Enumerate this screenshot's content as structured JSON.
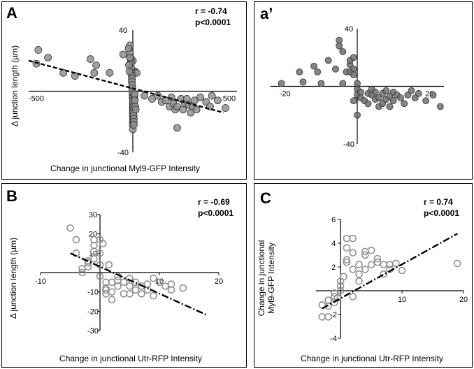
{
  "panels": {
    "A": {
      "label": "A",
      "xlabel": "Change in junctional Myl9-GFP Intensity",
      "ylabel": "Δ junction length (µm)",
      "stat_r": "r = -0.74",
      "stat_p": "p<0.0001"
    },
    "A2": {
      "label": "a’"
    },
    "B": {
      "label": "B",
      "xlabel": "Change in junctional Utr-RFP Intensity",
      "ylabel": "Δ junction length (µm)",
      "stat_r": "r = -0.69",
      "stat_p": "p<0.0001"
    },
    "C": {
      "label": "C",
      "xlabel": "Change in junctional Utr-RFP Intensity",
      "ylabel_line1": "Change in junctional",
      "ylabel_line2": "Myl9-GFP Intensity",
      "stat_r": "r = 0.74",
      "stat_p": "p<0.0001"
    }
  },
  "chart_data": [
    {
      "id": "A",
      "type": "scatter",
      "x_ticks": [
        -500,
        500
      ],
      "y_ticks": [
        40,
        -40
      ],
      "xlim": [
        -540,
        540
      ],
      "ylim": [
        -40,
        40
      ],
      "marker": "filled-circle",
      "marker_color": "#909090",
      "fit_line": {
        "style": "dashed",
        "x": [
          -540,
          470
        ],
        "y": [
          20,
          -14
        ]
      },
      "x": [
        -490,
        -500,
        -440,
        -360,
        -300,
        -220,
        -200,
        -190,
        -120,
        -50,
        0,
        10,
        20,
        -15,
        -15,
        -12,
        -10,
        -10,
        -8,
        -8,
        -5,
        -5,
        -5,
        -3,
        -3,
        -2,
        -2,
        -1,
        0,
        0,
        0,
        0,
        0,
        0,
        0,
        0,
        0,
        0,
        0,
        0,
        2,
        2,
        3,
        3,
        4,
        5,
        5,
        5,
        8,
        8,
        10,
        10,
        12,
        15,
        -20,
        -18,
        -15,
        -22,
        60,
        100,
        130,
        150,
        170,
        190,
        200,
        210,
        220,
        230,
        250,
        260,
        270,
        280,
        290,
        300,
        310,
        320,
        330,
        350,
        380,
        400,
        410,
        440,
        480,
        230
      ],
      "y": [
        27,
        18,
        22,
        12,
        10,
        21,
        12,
        17,
        12,
        24,
        20,
        13,
        12,
        30,
        25,
        22,
        20,
        18,
        15,
        12,
        10,
        8,
        6,
        4,
        2,
        0,
        -2,
        -4,
        -6,
        -8,
        -10,
        -12,
        -14,
        -16,
        -18,
        -20,
        -22,
        -25,
        -4,
        -6,
        -8,
        -10,
        -12,
        -14,
        -16,
        -18,
        -20,
        -22,
        -5,
        -3,
        -2,
        -6,
        -10,
        -12,
        17,
        13,
        22,
        28,
        -3,
        -5,
        -3,
        -7,
        -6,
        -10,
        -4,
        -8,
        -12,
        -10,
        -5,
        -12,
        -8,
        -5,
        -9,
        -14,
        -10,
        -6,
        -12,
        -4,
        -7,
        -10,
        -3,
        -6,
        -11,
        -24
      ]
    },
    {
      "id": "a'",
      "type": "scatter",
      "x_ticks": [
        -20,
        20
      ],
      "y_ticks": [
        40,
        -40
      ],
      "xlim": [
        -24,
        24
      ],
      "ylim": [
        -40,
        40
      ],
      "marker": "filled-circle",
      "marker_color": "#707070",
      "x": [
        -21,
        -12,
        -11,
        -10,
        -8,
        -6,
        -5,
        -5,
        -4,
        -4,
        -3,
        -2,
        -2,
        -2,
        -1,
        -1,
        -1,
        0,
        0,
        0,
        1,
        1,
        2,
        3,
        3,
        4,
        4,
        5,
        5,
        6,
        6,
        7,
        7,
        8,
        8,
        9,
        9,
        10,
        10,
        11,
        12,
        13,
        14,
        15,
        16,
        17,
        19,
        21,
        23,
        -15,
        -16,
        -1,
        0
      ],
      "y": [
        2,
        14,
        10,
        2,
        18,
        12,
        28,
        32,
        24,
        2,
        10,
        15,
        18,
        10,
        12,
        20,
        8,
        2,
        -2,
        -6,
        -4,
        -8,
        -10,
        -5,
        -12,
        -6,
        -2,
        -9,
        -4,
        -14,
        -8,
        -5,
        -12,
        -3,
        -9,
        -7,
        -14,
        -4,
        -10,
        -6,
        -8,
        -12,
        -6,
        -3,
        -8,
        -5,
        -10,
        -6,
        -14,
        3,
        10,
        -10,
        -20
      ]
    },
    {
      "id": "B",
      "type": "scatter",
      "x_ticks": [
        -10,
        10,
        20
      ],
      "y_ticks": [
        30,
        20,
        10,
        -10,
        -20,
        -30
      ],
      "xlim": [
        -10,
        20
      ],
      "ylim": [
        -30,
        30
      ],
      "marker": "open-circle",
      "marker_color": "#909090",
      "fit_line": {
        "style": "dash-dot",
        "x": [
          -5,
          18
        ],
        "y": [
          10,
          -22
        ]
      },
      "x": [
        -5,
        -4,
        -4,
        -3,
        -2,
        -2,
        -1,
        -1,
        -1,
        0,
        0,
        0,
        0.5,
        1,
        1,
        1.5,
        2,
        -3,
        -2,
        0,
        1,
        1,
        2,
        2,
        3,
        3,
        3,
        4,
        4,
        5,
        5,
        5,
        6,
        6,
        7,
        7,
        8,
        8,
        9,
        9,
        10,
        11,
        12,
        12,
        14,
        -1
      ],
      "y": [
        23,
        17,
        10,
        0,
        3,
        6,
        7,
        11,
        17,
        4,
        10,
        17,
        15,
        -5,
        -9,
        4,
        -14,
        2,
        5,
        -2,
        -8,
        -11,
        -5,
        -10,
        -4,
        -7,
        -2,
        -5,
        -11,
        -7,
        -11,
        -3,
        -9,
        -5,
        -7,
        -11,
        -6,
        -9,
        -3,
        -12,
        -5,
        -7,
        -9,
        -6,
        -8,
        14
      ]
    },
    {
      "id": "C",
      "type": "scatter",
      "x_ticks": [
        10,
        20
      ],
      "y_ticks": [
        6,
        4,
        2,
        -2,
        -4
      ],
      "xlim": [
        -4,
        20
      ],
      "ylim": [
        -4,
        6
      ],
      "marker": "open-circle",
      "marker_color": "#909090",
      "fit_line": {
        "style": "dash-dot",
        "x": [
          -3,
          19
        ],
        "y": [
          -1.5,
          4.8
        ]
      },
      "x": [
        -3,
        -3,
        -2,
        -2,
        -1,
        -1,
        -1,
        -0.5,
        0,
        0,
        0,
        0.5,
        1,
        1,
        1,
        2,
        2,
        2,
        3,
        3,
        3,
        4,
        4,
        4,
        5,
        5,
        6,
        6,
        7,
        7,
        8,
        8,
        9,
        10,
        19,
        -2,
        1,
        2
      ],
      "y": [
        -1.2,
        -2.2,
        -2.2,
        -0.8,
        -1.0,
        -0.5,
        -0.2,
        -0.6,
        0,
        0.4,
        0.8,
        1.2,
        2.4,
        2.6,
        4.4,
        4.4,
        1.8,
        -0.5,
        0.8,
        1.4,
        2.2,
        3.0,
        3.3,
        1.8,
        2.2,
        3.4,
        2.7,
        2.4,
        1.4,
        2.2,
        2.2,
        1.8,
        2.3,
        1.7,
        2.3,
        -1.3,
        3.6,
        3.2
      ]
    }
  ]
}
